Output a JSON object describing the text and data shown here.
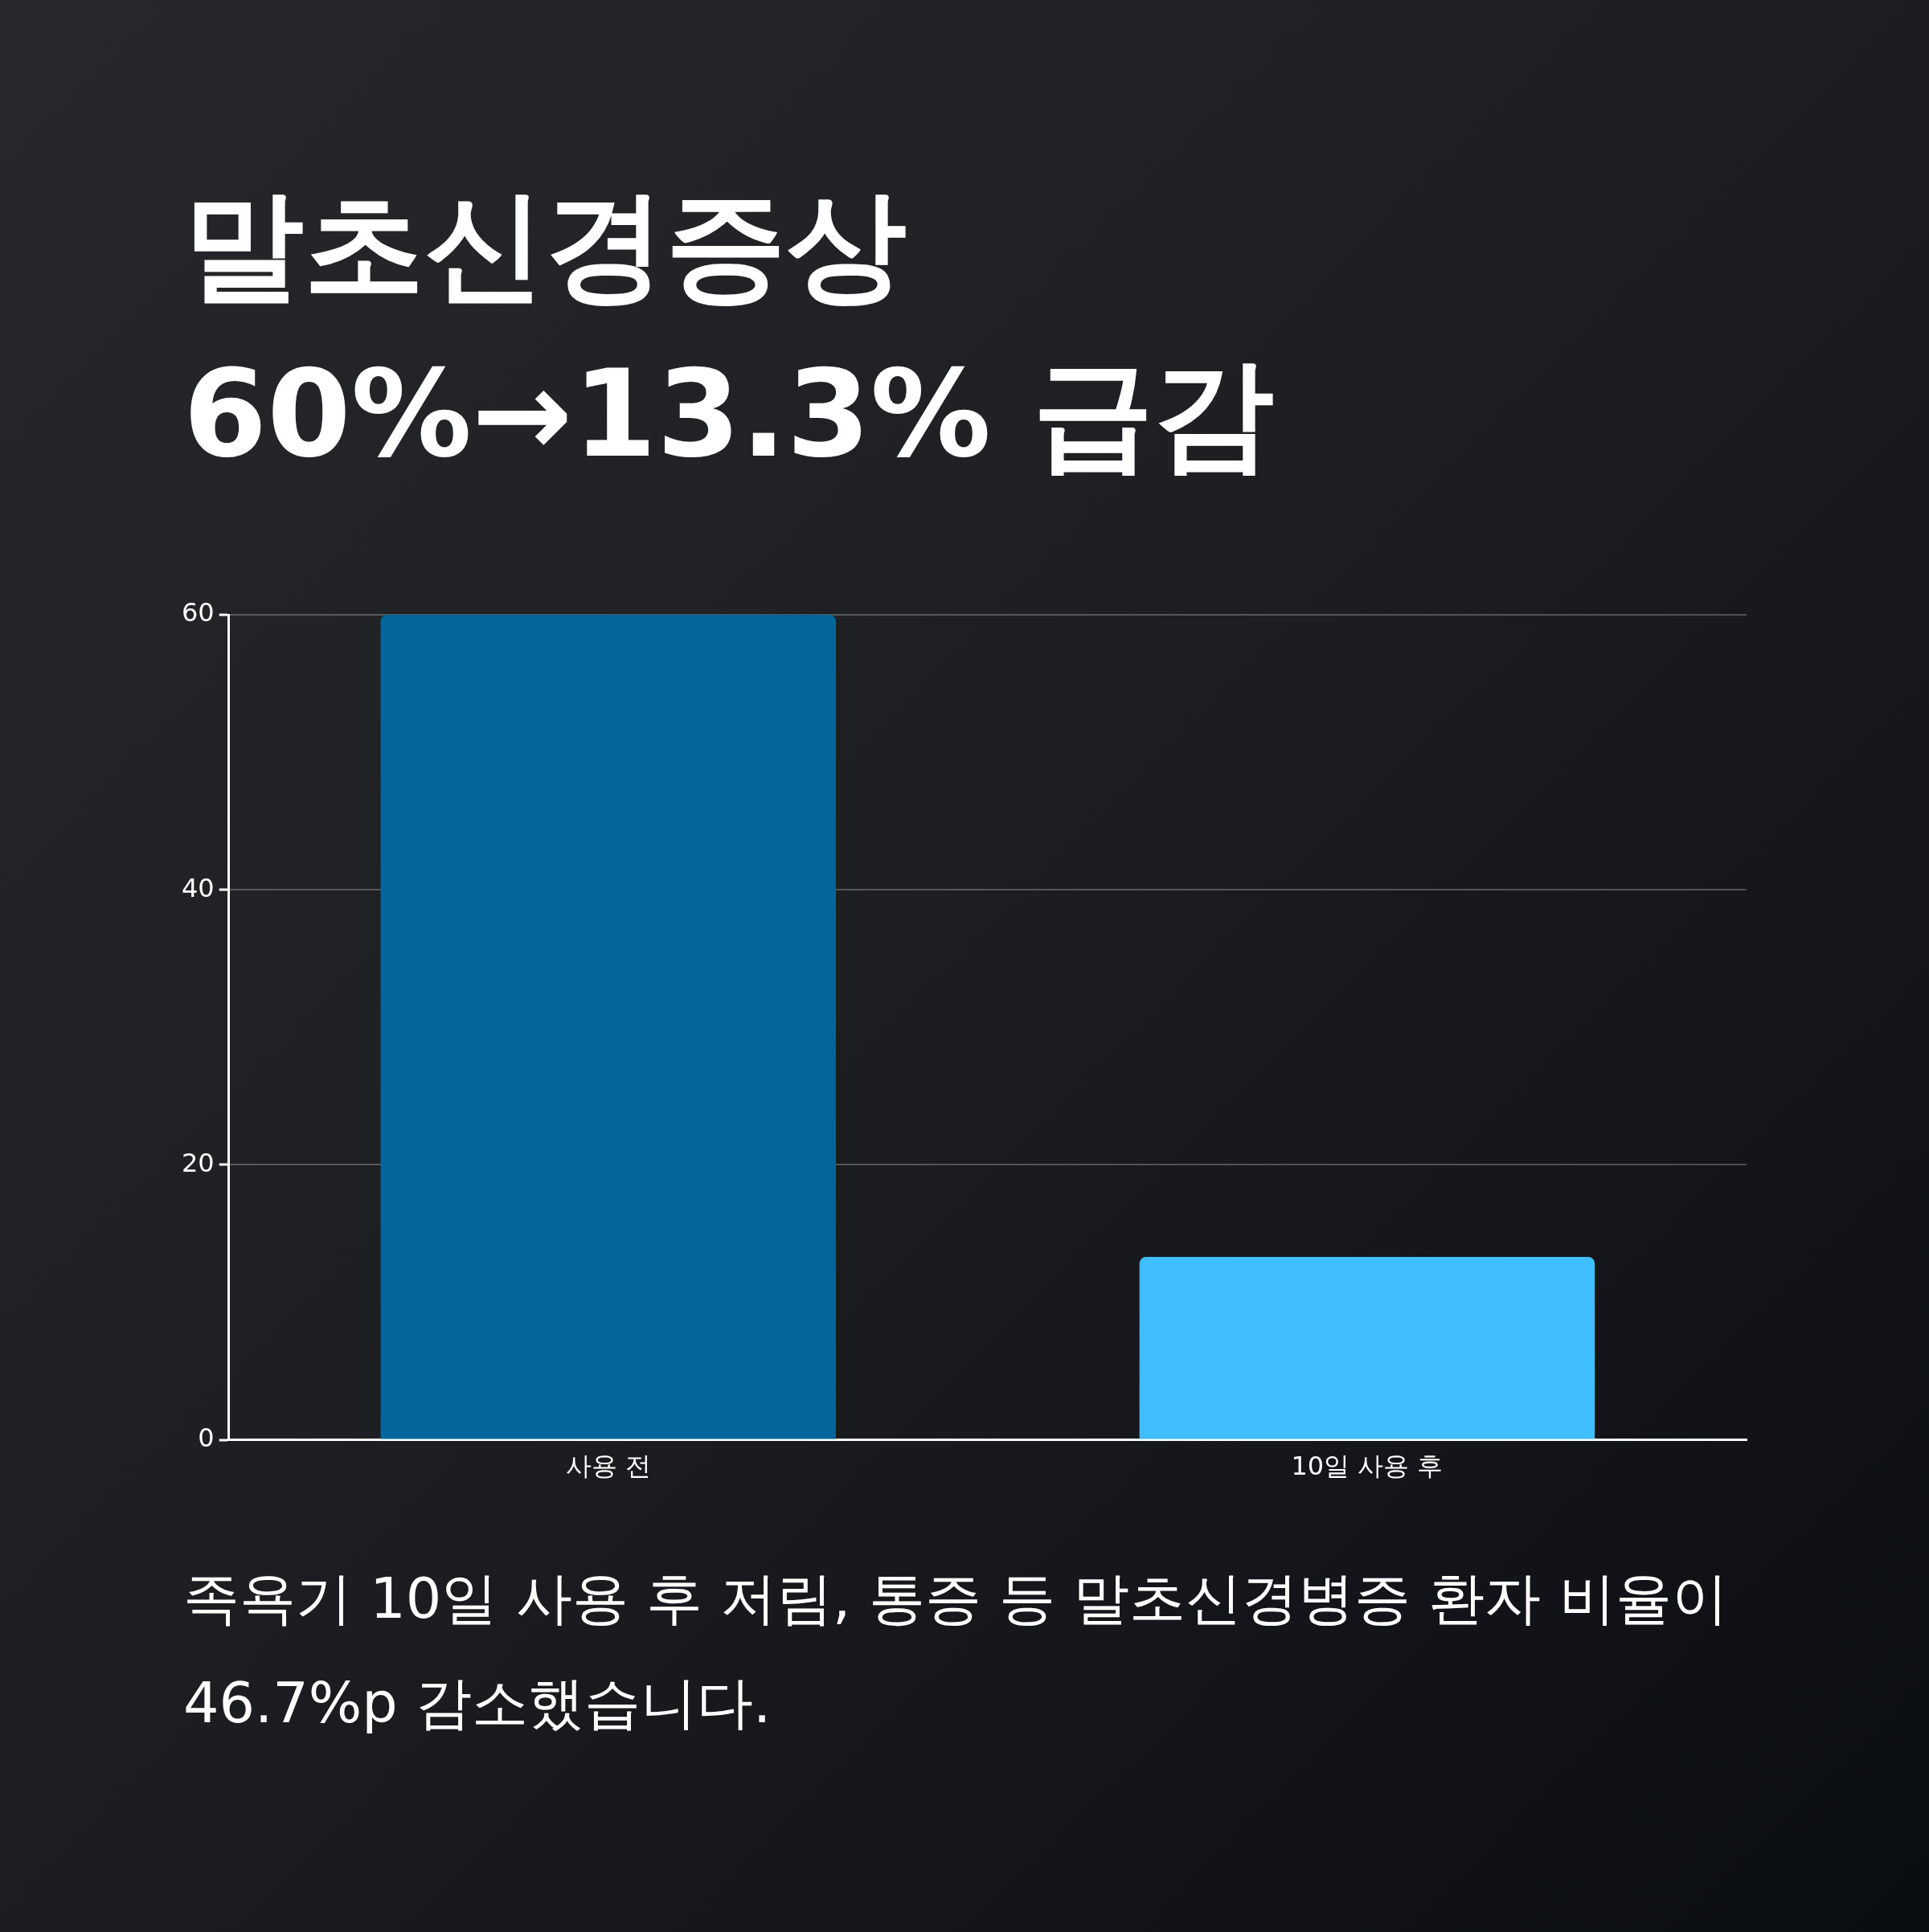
{
  "chart_data": {
    "type": "bar",
    "title": "말초신경증상 60%→13.3% 급감",
    "categories": [
      "사용 전",
      "10일 사용 후"
    ],
    "values": [
      60,
      13.3
    ],
    "colors": [
      "#02669b",
      "#40bfff"
    ],
    "ylim": [
      0,
      60
    ],
    "yticks": [
      0,
      20,
      40,
      60
    ],
    "grid": "y",
    "annotations": [
      "족욕기 10일 사용 후 저림, 통증 등 말초신경병증 환자 비율이 46.7%p 감소했습니다."
    ]
  }
}
